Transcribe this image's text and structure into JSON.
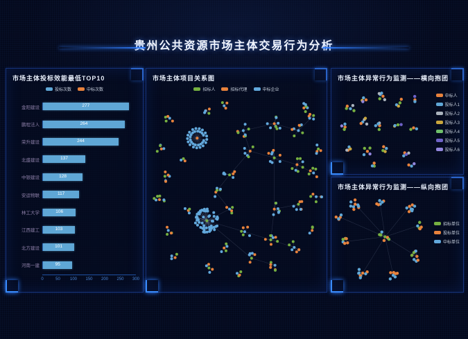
{
  "page": {
    "title": "贵州公共资源市场主体交易行为分析"
  },
  "panels": {
    "bar_panel": {
      "title": "市场主体投标效能最低TOP10",
      "legend": [
        {
          "label": "投标次数",
          "color": "#5fa7d6"
        },
        {
          "label": "中标次数",
          "color": "#e8823c"
        }
      ]
    },
    "relation_panel": {
      "title": "市场主体项目关系图",
      "legend": [
        {
          "label": "招标人",
          "color": "#76b041"
        },
        {
          "label": "招标代理",
          "color": "#e8823c"
        },
        {
          "label": "中标企业",
          "color": "#62a8dc"
        }
      ]
    },
    "horizontal_panel": {
      "title": "市场主体异常行为监测——横向抱团",
      "legend": [
        {
          "label": "中标人",
          "color": "#e8823c"
        },
        {
          "label": "投标人1",
          "color": "#5fa7d6"
        },
        {
          "label": "投标人2",
          "color": "#aab3bd"
        },
        {
          "label": "投标人3",
          "color": "#c9a63d"
        },
        {
          "label": "投标人4",
          "color": "#6fbf6a"
        },
        {
          "label": "投标人5",
          "color": "#6f63c8"
        },
        {
          "label": "投标人6",
          "color": "#9286dd"
        }
      ]
    },
    "vertical_panel": {
      "title": "市场主体异常行为监测——纵向抱团",
      "legend": [
        {
          "label": "招标单位",
          "color": "#76b041"
        },
        {
          "label": "投标单位",
          "color": "#e8823c"
        },
        {
          "label": "中标单位",
          "color": "#62a8dc"
        }
      ]
    }
  },
  "chart_data": [
    {
      "type": "bar",
      "orientation": "horizontal",
      "title": "市场主体投标效能最低TOP10",
      "series_name": "投标次数",
      "categories": [
        "金阳建设",
        "鹏程法人",
        "荣升建设",
        "北盛建设",
        "中银建设",
        "安运物联",
        "林工大学",
        "江西建工",
        "北方建设",
        "河南一建"
      ],
      "values": [
        277,
        264,
        244,
        137,
        128,
        117,
        106,
        103,
        101,
        95
      ],
      "xlabel": "",
      "ylabel": "",
      "xlim": [
        0,
        300
      ],
      "x_ticks": [
        "0",
        "50",
        "100",
        "150",
        "200",
        "250",
        "300"
      ],
      "grid": false,
      "legend_position": "top"
    },
    {
      "type": "scatter",
      "subtype": "network-graph",
      "title": "市场主体项目关系图",
      "seed": 7,
      "node_r": 2,
      "palette": {
        "g": "#76b041",
        "o": "#e8823c",
        "b": "#62a8dc"
      },
      "clusters": [
        {
          "x": 27.7,
          "y": 21.6,
          "n": 34,
          "r": 14,
          "p": "ob",
          "ring": true
        },
        {
          "x": 33.2,
          "y": 64.3,
          "n": 62,
          "r": 17,
          "p": "gb"
        },
        {
          "x": 53.9,
          "y": 17.7,
          "n": 8,
          "r": 10,
          "p": "bgob"
        },
        {
          "x": 71.5,
          "y": 14.1,
          "n": 10,
          "r": 11,
          "p": "obgb"
        },
        {
          "x": 85.2,
          "y": 17.7,
          "n": 8,
          "r": 10,
          "p": "bgbo"
        },
        {
          "x": 93.8,
          "y": 9.9,
          "n": 5,
          "r": 7,
          "p": "gbo"
        },
        {
          "x": 57.8,
          "y": 28.3,
          "n": 6,
          "r": 9,
          "p": "obg"
        },
        {
          "x": 71.5,
          "y": 31.8,
          "n": 9,
          "r": 11,
          "p": "gobb"
        },
        {
          "x": 84.4,
          "y": 35.3,
          "n": 8,
          "r": 10,
          "p": "ogbg"
        },
        {
          "x": 93.8,
          "y": 39.6,
          "n": 6,
          "r": 8,
          "p": "bgo"
        },
        {
          "x": 46.1,
          "y": 40.6,
          "n": 7,
          "r": 9,
          "p": "gbob"
        },
        {
          "x": 38.3,
          "y": 49.5,
          "n": 6,
          "r": 8,
          "p": "obgb"
        },
        {
          "x": 46.1,
          "y": 58.3,
          "n": 5,
          "r": 7,
          "p": "bgo"
        },
        {
          "x": 71.5,
          "y": 58.3,
          "n": 8,
          "r": 10,
          "p": "obgb"
        },
        {
          "x": 85.2,
          "y": 55.8,
          "n": 7,
          "r": 9,
          "p": "gbo"
        },
        {
          "x": 54.7,
          "y": 70.0,
          "n": 6,
          "r": 9,
          "p": "bogb"
        },
        {
          "x": 69.5,
          "y": 74.2,
          "n": 8,
          "r": 10,
          "p": "gobg"
        },
        {
          "x": 82.8,
          "y": 78.1,
          "n": 7,
          "r": 9,
          "p": "bgob"
        },
        {
          "x": 43.0,
          "y": 78.4,
          "n": 5,
          "r": 7,
          "p": "obg"
        },
        {
          "x": 58.6,
          "y": 83.7,
          "n": 6,
          "r": 8,
          "p": "gbo"
        },
        {
          "x": 71.9,
          "y": 87.3,
          "n": 6,
          "r": 8,
          "p": "bog"
        },
        {
          "x": 12.1,
          "y": 11.3,
          "n": 5,
          "r": 7,
          "p": "bgo"
        },
        {
          "x": 7.4,
          "y": 27.2,
          "n": 5,
          "r": 7,
          "p": "ogb"
        },
        {
          "x": 9.4,
          "y": 41.3,
          "n": 6,
          "r": 8,
          "p": "gob"
        },
        {
          "x": 6.3,
          "y": 53.4,
          "n": 7,
          "r": 8,
          "p": "obgg"
        },
        {
          "x": 11.3,
          "y": 69.3,
          "n": 5,
          "r": 7,
          "p": "bgo"
        },
        {
          "x": 15.2,
          "y": 83.4,
          "n": 4,
          "r": 6,
          "p": "obg"
        },
        {
          "x": 34.4,
          "y": 8.8,
          "n": 5,
          "r": 7,
          "p": "gbo"
        },
        {
          "x": 43.0,
          "y": 4.9,
          "n": 4,
          "r": 6,
          "p": "bog"
        },
        {
          "x": 88.3,
          "y": 6.0,
          "n": 6,
          "r": 8,
          "p": "obgb"
        },
        {
          "x": 96.5,
          "y": 27.2,
          "n": 5,
          "r": 7,
          "p": "gbo"
        },
        {
          "x": 95.3,
          "y": 51.9,
          "n": 6,
          "r": 8,
          "p": "bgob"
        },
        {
          "x": 93.0,
          "y": 69.3,
          "n": 4,
          "r": 6,
          "p": "ogb"
        },
        {
          "x": 34.4,
          "y": 88.7,
          "n": 5,
          "r": 7,
          "p": "gob"
        },
        {
          "x": 50.4,
          "y": 91.5,
          "n": 4,
          "r": 6,
          "p": "bgo"
        },
        {
          "x": 22.7,
          "y": 59.0,
          "n": 4,
          "r": 6,
          "p": "obg"
        },
        {
          "x": 19.9,
          "y": 32.2,
          "n": 3,
          "r": 5,
          "p": "gbo"
        }
      ],
      "links": [
        [
          2,
          3
        ],
        [
          3,
          4
        ],
        [
          4,
          5
        ],
        [
          3,
          7
        ],
        [
          6,
          7
        ],
        [
          7,
          8
        ],
        [
          8,
          9
        ],
        [
          2,
          6
        ],
        [
          6,
          10
        ],
        [
          10,
          11
        ],
        [
          11,
          12
        ],
        [
          12,
          1
        ],
        [
          7,
          13
        ],
        [
          13,
          14
        ],
        [
          1,
          15
        ],
        [
          15,
          16
        ],
        [
          16,
          17
        ],
        [
          1,
          19
        ],
        [
          19,
          20
        ],
        [
          13,
          16
        ]
      ]
    },
    {
      "type": "scatter",
      "subtype": "network-graph",
      "title": "市场主体异常行为监测——横向抱团",
      "seed": 11,
      "node_r": 2.2,
      "palette": {
        "g": "#76b041",
        "o": "#e8823c",
        "b": "#5fa7d6",
        "G": "#aab3bd",
        "y": "#c9a63d",
        "p": "#6f63c8",
        "v": "#9286dd"
      },
      "clusters": [
        {
          "x": 17.6,
          "y": 25.9,
          "n": 5,
          "r": 7,
          "p": "bgoG"
        },
        {
          "x": 33.8,
          "y": 15.5,
          "n": 4,
          "r": 6,
          "p": "obyv"
        },
        {
          "x": 51.4,
          "y": 11.2,
          "n": 6,
          "r": 8,
          "p": "obGg"
        },
        {
          "x": 69.0,
          "y": 19.0,
          "n": 4,
          "r": 6,
          "p": "gboy"
        },
        {
          "x": 84.5,
          "y": 15.5,
          "n": 3,
          "r": 5,
          "p": "obp"
        },
        {
          "x": 12.0,
          "y": 47.4,
          "n": 4,
          "r": 6,
          "p": "ogbv"
        },
        {
          "x": 30.3,
          "y": 41.4,
          "n": 5,
          "r": 7,
          "p": "bGyo"
        },
        {
          "x": 47.9,
          "y": 45.7,
          "n": 5,
          "r": 7,
          "p": "obgG"
        },
        {
          "x": 66.9,
          "y": 44.8,
          "n": 4,
          "r": 6,
          "p": "gypb"
        },
        {
          "x": 83.1,
          "y": 48.3,
          "n": 3,
          "r": 5,
          "p": "obg"
        },
        {
          "x": 16.2,
          "y": 70.7,
          "n": 4,
          "r": 6,
          "p": "boGy"
        },
        {
          "x": 35.2,
          "y": 75.9,
          "n": 5,
          "r": 7,
          "p": "ogvb"
        },
        {
          "x": 54.9,
          "y": 72.4,
          "n": 4,
          "r": 6,
          "p": "bgoy"
        },
        {
          "x": 73.9,
          "y": 77.6,
          "n": 4,
          "r": 6,
          "p": "oGbp"
        },
        {
          "x": 42.3,
          "y": 93.1,
          "n": 3,
          "r": 5,
          "p": "gob"
        },
        {
          "x": 81.0,
          "y": 93.1,
          "n": 3,
          "r": 5,
          "p": "bov"
        }
      ],
      "links": []
    },
    {
      "type": "scatter",
      "subtype": "network-graph",
      "title": "市场主体异常行为监测——纵向抱团",
      "seed": 13,
      "node_r": 2.2,
      "palette": {
        "g": "#76b041",
        "o": "#e8823c",
        "b": "#5fa7d6"
      },
      "clusters": [
        {
          "x": 53.5,
          "y": 43.8,
          "n": 9,
          "r": 9,
          "p": "ggbog"
        },
        {
          "x": 22.5,
          "y": 9.2,
          "n": 9,
          "r": 8,
          "p": "obob"
        },
        {
          "x": 47.9,
          "y": 5.4,
          "n": 6,
          "r": 7,
          "p": "bobo"
        },
        {
          "x": 78.9,
          "y": 11.5,
          "n": 9,
          "r": 8,
          "p": "obbo"
        },
        {
          "x": 87.3,
          "y": 32.3,
          "n": 5,
          "r": 6,
          "p": "bog"
        },
        {
          "x": 86.6,
          "y": 64.6,
          "n": 9,
          "r": 8,
          "p": "obog"
        },
        {
          "x": 62.0,
          "y": 84.6,
          "n": 7,
          "r": 7,
          "p": "bobo"
        },
        {
          "x": 30.3,
          "y": 82.3,
          "n": 9,
          "r": 8,
          "p": "obbo"
        },
        {
          "x": 9.9,
          "y": 49.2,
          "n": 7,
          "r": 7,
          "p": "bogo"
        },
        {
          "x": 7.0,
          "y": 23.1,
          "n": 5,
          "r": 6,
          "p": "obo"
        }
      ],
      "links": [
        [
          0,
          1
        ],
        [
          0,
          2
        ],
        [
          0,
          3
        ],
        [
          0,
          4
        ],
        [
          0,
          5
        ],
        [
          0,
          6
        ],
        [
          0,
          7
        ],
        [
          0,
          8
        ],
        [
          0,
          9
        ]
      ]
    }
  ]
}
